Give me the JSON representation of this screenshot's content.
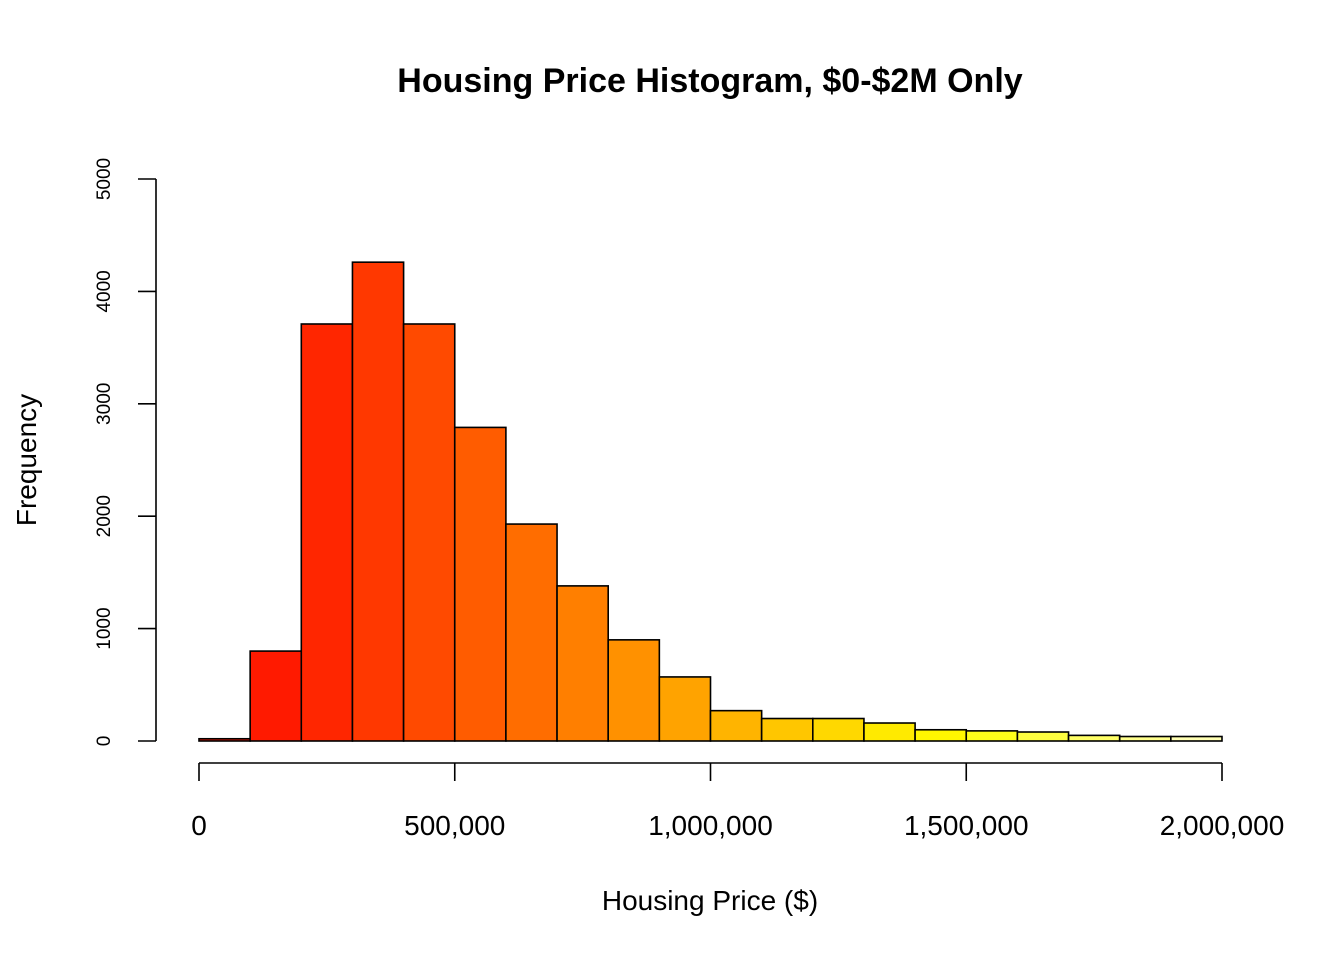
{
  "chart_data": {
    "type": "bar",
    "title": "Housing Price Histogram, $0-$2M Only",
    "xlabel": "Housing Price ($)",
    "ylabel": "Frequency",
    "bin_width": 100000,
    "bins": [
      {
        "start": 0,
        "end": 100000,
        "count": 20,
        "color": "#FF1600"
      },
      {
        "start": 100000,
        "end": 200000,
        "count": 800,
        "color": "#FF1A00"
      },
      {
        "start": 200000,
        "end": 300000,
        "count": 3710,
        "color": "#FF2600"
      },
      {
        "start": 300000,
        "end": 400000,
        "count": 4260,
        "color": "#FF3800"
      },
      {
        "start": 400000,
        "end": 500000,
        "count": 3710,
        "color": "#FF4A00"
      },
      {
        "start": 500000,
        "end": 600000,
        "count": 2790,
        "color": "#FF5C00"
      },
      {
        "start": 600000,
        "end": 700000,
        "count": 1930,
        "color": "#FF6D00"
      },
      {
        "start": 700000,
        "end": 800000,
        "count": 1380,
        "color": "#FF7F00"
      },
      {
        "start": 800000,
        "end": 900000,
        "count": 900,
        "color": "#FF9100"
      },
      {
        "start": 900000,
        "end": 1000000,
        "count": 570,
        "color": "#FFA300"
      },
      {
        "start": 1000000,
        "end": 1100000,
        "count": 270,
        "color": "#FFB400"
      },
      {
        "start": 1100000,
        "end": 1200000,
        "count": 200,
        "color": "#FFC600"
      },
      {
        "start": 1200000,
        "end": 1300000,
        "count": 200,
        "color": "#FFD800"
      },
      {
        "start": 1300000,
        "end": 1400000,
        "count": 160,
        "color": "#FFEA00"
      },
      {
        "start": 1400000,
        "end": 1500000,
        "count": 100,
        "color": "#FFF700"
      },
      {
        "start": 1500000,
        "end": 1600000,
        "count": 90,
        "color": "#FFFF1A"
      },
      {
        "start": 1600000,
        "end": 1700000,
        "count": 80,
        "color": "#FFFF40"
      },
      {
        "start": 1700000,
        "end": 1800000,
        "count": 50,
        "color": "#FFFF66"
      },
      {
        "start": 1800000,
        "end": 1900000,
        "count": 40,
        "color": "#FFFF8C"
      },
      {
        "start": 1900000,
        "end": 2000000,
        "count": 40,
        "color": "#FFFFB3"
      }
    ],
    "xlim": [
      0,
      2000000
    ],
    "ylim": [
      0,
      5000
    ],
    "x_ticks": [
      0,
      500000,
      1000000,
      1500000,
      2000000
    ],
    "x_tick_labels": [
      "0",
      "500,000",
      "1,000,000",
      "1,500,000",
      "2,000,000"
    ],
    "y_ticks": [
      0,
      1000,
      2000,
      3000,
      4000,
      5000
    ],
    "y_tick_labels": [
      "0",
      "1000",
      "2000",
      "3000",
      "4000",
      "5000"
    ],
    "grid": false,
    "legend": "none"
  }
}
